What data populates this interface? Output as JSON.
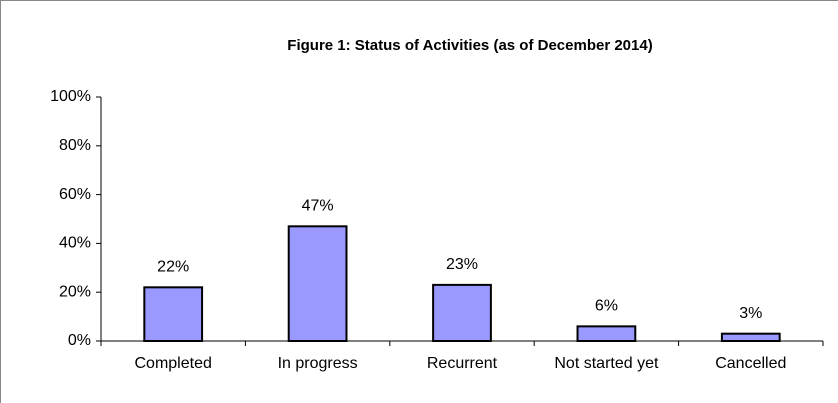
{
  "chart_data": {
    "type": "bar",
    "title": "Figure 1: Status of Activities (as of December 2014)",
    "categories": [
      "Completed",
      "In progress",
      "Recurrent",
      "Not started yet",
      "Cancelled"
    ],
    "values": [
      22,
      47,
      23,
      6,
      3
    ],
    "value_labels": [
      "22%",
      "47%",
      "23%",
      "6%",
      "3%"
    ],
    "color": "#9999ff",
    "ylim": [
      0,
      100
    ],
    "yticks": [
      {
        "value": 0,
        "label": "0%"
      },
      {
        "value": 20,
        "label": "20%"
      },
      {
        "value": 40,
        "label": "40%"
      },
      {
        "value": 60,
        "label": "60%"
      },
      {
        "value": 80,
        "label": "80%"
      },
      {
        "value": 100,
        "label": "100%"
      }
    ],
    "grid": false
  }
}
